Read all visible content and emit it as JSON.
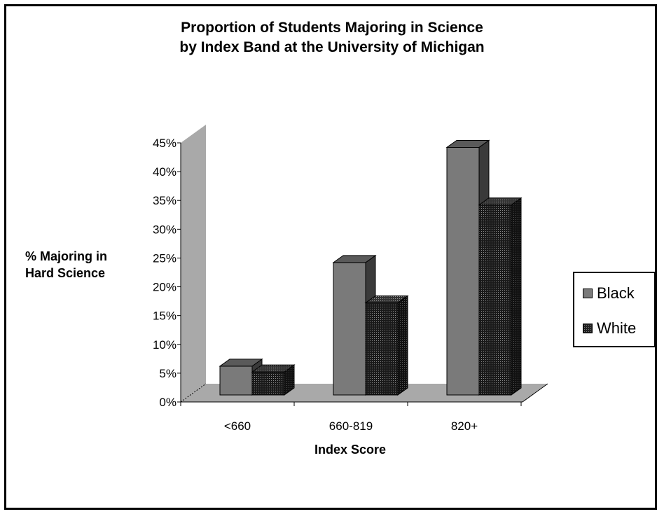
{
  "chart_data": {
    "type": "bar",
    "title": "Proportion of Students Majoring in Science",
    "subtitle": "by Index Band at the University of Michigan",
    "xlabel": "Index Score",
    "ylabel": "% Majoring in Hard Science",
    "categories": [
      "<660",
      "660-819",
      "820+"
    ],
    "series": [
      {
        "name": "Black",
        "values": [
          5,
          23,
          43
        ],
        "color": "#7a7a7a"
      },
      {
        "name": "White",
        "values": [
          4,
          16,
          33
        ],
        "color": "#1e1e1e"
      }
    ],
    "ylim": [
      0,
      45
    ],
    "yticks": [
      "0%",
      "5%",
      "10%",
      "15%",
      "20%",
      "25%",
      "30%",
      "35%",
      "40%",
      "45%"
    ],
    "legend_position": "right",
    "style": "3d-clustered",
    "grid": false
  }
}
